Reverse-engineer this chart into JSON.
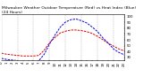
{
  "title": "Milwaukee Weather Outdoor Temperature (Red) vs Heat Index (Blue) (24 Hours)",
  "title_fontsize": 3.2,
  "red_line_color": "#dd0000",
  "blue_line_color": "#0000dd",
  "background_color": "#ffffff",
  "grid_color": "#888888",
  "ylim": [
    25,
    105
  ],
  "yticks": [
    30,
    40,
    50,
    60,
    70,
    80,
    90,
    100
  ],
  "ytick_labels": [
    "30",
    "40",
    "50",
    "60",
    "70",
    "80",
    "90",
    "100"
  ],
  "hours": [
    0,
    1,
    2,
    3,
    4,
    5,
    6,
    7,
    8,
    9,
    10,
    11,
    12,
    13,
    14,
    15,
    16,
    17,
    18,
    19,
    20,
    21,
    22,
    23
  ],
  "red_temps": [
    37,
    35,
    34,
    33,
    32,
    32,
    32,
    33,
    42,
    55,
    64,
    72,
    75,
    77,
    77,
    76,
    74,
    71,
    66,
    60,
    54,
    49,
    44,
    41
  ],
  "blue_temps": [
    28,
    26,
    25,
    24,
    23,
    22,
    22,
    24,
    35,
    53,
    68,
    82,
    91,
    95,
    96,
    93,
    89,
    82,
    74,
    63,
    54,
    44,
    38,
    34
  ],
  "vgrid_hours": [
    0,
    3,
    6,
    9,
    12,
    15,
    18,
    21,
    23
  ],
  "xlabel_hours": [
    0,
    1,
    2,
    3,
    4,
    5,
    6,
    7,
    8,
    9,
    10,
    11,
    12,
    13,
    14,
    15,
    16,
    17,
    18,
    19,
    20,
    21,
    22,
    23
  ],
  "tick_fontsize": 2.8,
  "linewidth": 0.7
}
